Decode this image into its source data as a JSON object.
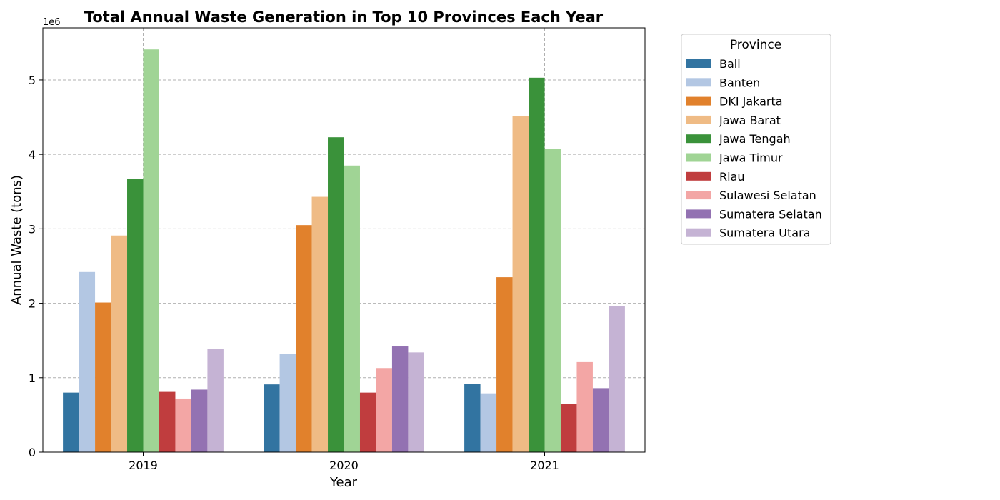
{
  "chart_data": {
    "type": "bar",
    "title": "Total Annual Waste Generation in Top 10 Provinces Each Year",
    "xlabel": "Year",
    "ylabel": "Annual Waste (tons)",
    "offset_label": "1e6",
    "ylim": [
      0,
      5.7
    ],
    "yticks": [
      0,
      1,
      2,
      3,
      4,
      5
    ],
    "grid": true,
    "legend_title": "Province",
    "legend_position": "outside-right",
    "categories": [
      "2019",
      "2020",
      "2021"
    ],
    "series": [
      {
        "name": "Bali",
        "color": "#3274a1",
        "values": [
          0.8,
          0.91,
          0.92
        ]
      },
      {
        "name": "Banten",
        "color": "#b3c7e3",
        "values": [
          2.42,
          1.32,
          0.79
        ]
      },
      {
        "name": "DKI Jakarta",
        "color": "#e1812c",
        "values": [
          2.01,
          3.05,
          2.35
        ]
      },
      {
        "name": "Jawa Barat",
        "color": "#efbb85",
        "values": [
          2.91,
          3.43,
          4.51
        ]
      },
      {
        "name": "Jawa Tengah",
        "color": "#3a923a",
        "values": [
          3.67,
          4.23,
          5.03
        ]
      },
      {
        "name": "Jawa Timur",
        "color": "#a0d495",
        "values": [
          5.41,
          3.85,
          4.07
        ]
      },
      {
        "name": "Riau",
        "color": "#c03d3e",
        "values": [
          0.81,
          0.8,
          0.65
        ]
      },
      {
        "name": "Sulawesi Selatan",
        "color": "#f3a6a5",
        "values": [
          0.72,
          1.13,
          1.21
        ]
      },
      {
        "name": "Sumatera Selatan",
        "color": "#9372b2",
        "values": [
          0.84,
          1.42,
          0.86
        ]
      },
      {
        "name": "Sumatera Utara",
        "color": "#c5b3d4",
        "values": [
          1.39,
          1.34,
          1.96
        ]
      }
    ]
  }
}
